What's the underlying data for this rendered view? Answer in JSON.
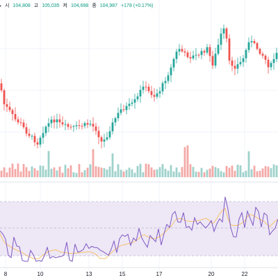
{
  "legend": {
    "open_label": "시",
    "open": "104,808",
    "high_label": "고",
    "high": "105,035",
    "low_label": "저",
    "low": "104,698",
    "close_label": "종",
    "close": "104,987",
    "change": "+178 (+0.17%)"
  },
  "colors": {
    "up": "#26a69a",
    "down": "#ef5350",
    "rsi": "#7e57c2",
    "rsi_ma": "#f7c26b",
    "rsi_band": "#ede7f6"
  },
  "chart_data": {
    "type": "candlestick",
    "x_tick_labels": [
      "8",
      "10",
      "13",
      "15",
      "17",
      "20",
      "22"
    ],
    "rsi": {
      "levels": [
        70,
        50,
        30
      ]
    }
  }
}
